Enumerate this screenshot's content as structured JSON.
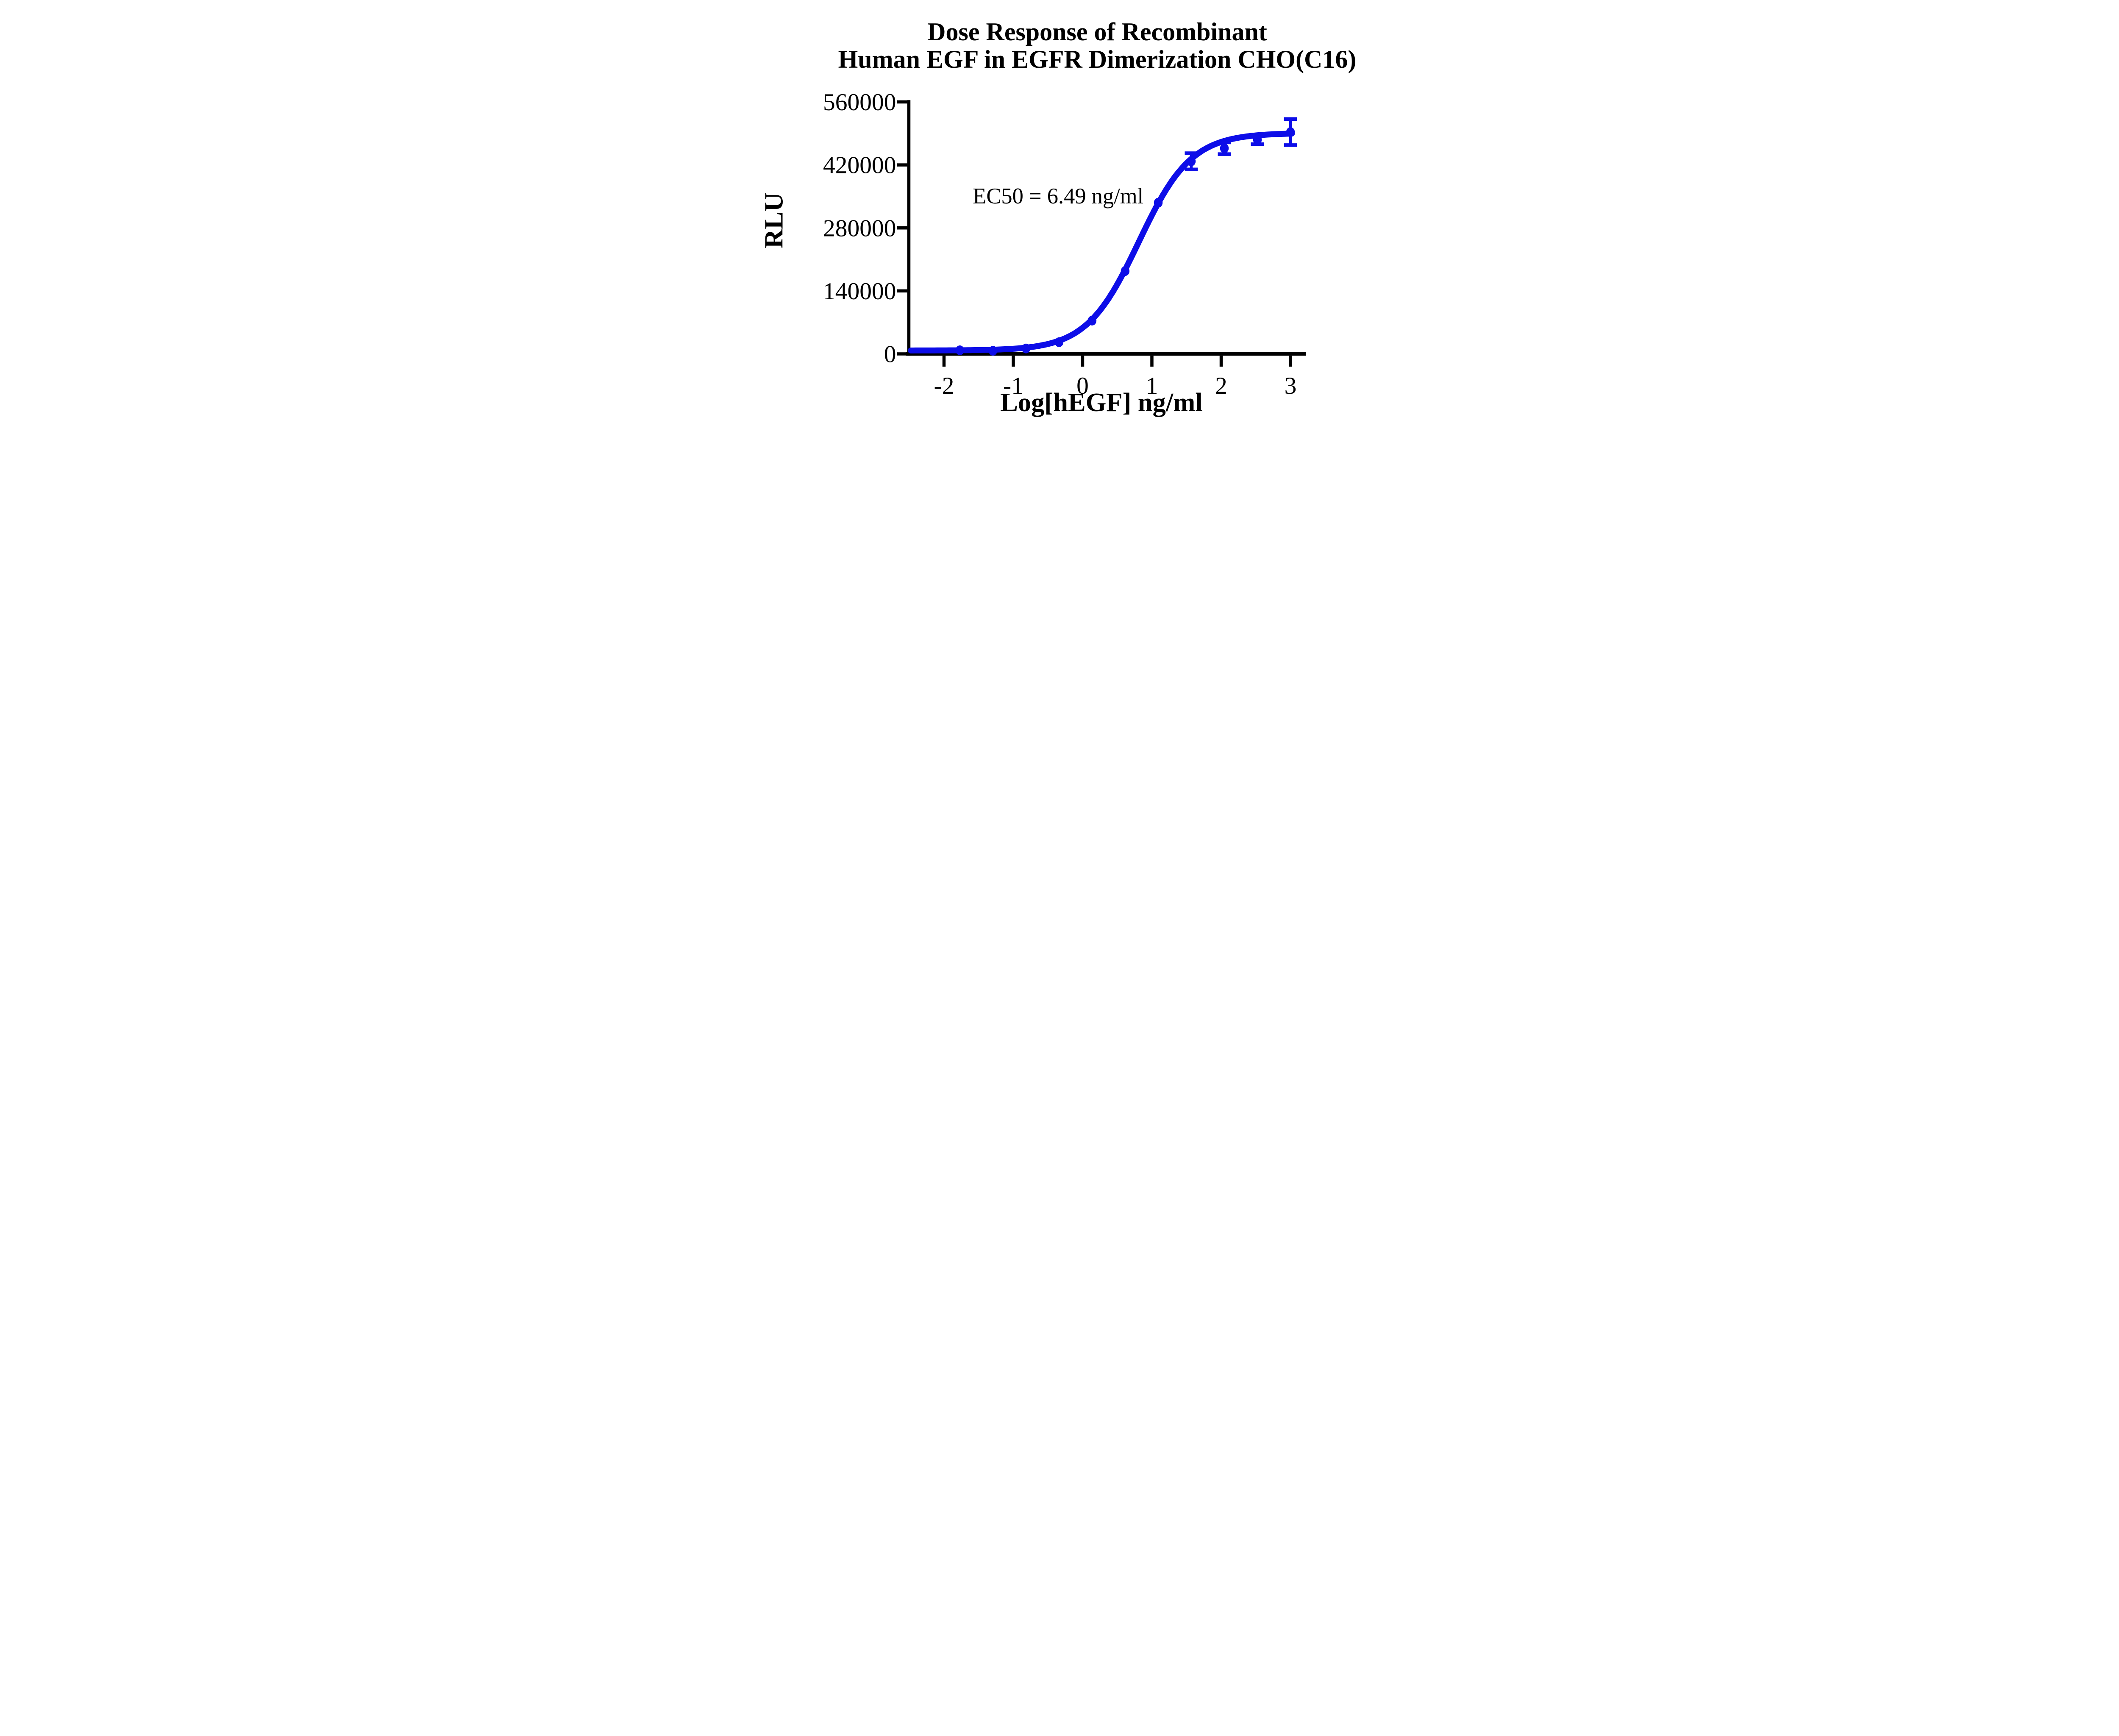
{
  "chart_data": {
    "type": "line",
    "title_line1": "Dose Response of Recombinant",
    "title_line2": "Human EGF in EGFR Dimerization CHO(C16)",
    "annotation": "EC50 = 6.49 ng/ml",
    "xlabel": "Log[hEGF] ng/ml",
    "ylabel": "RLU",
    "x_ticks": [
      -2,
      -1,
      0,
      1,
      2,
      3
    ],
    "y_ticks": [
      0,
      140000,
      280000,
      420000,
      560000
    ],
    "xlim": [
      -2.55,
      3.22
    ],
    "ylim": [
      0,
      560000
    ],
    "grid": false,
    "legend": "none",
    "colors": {
      "series": "#0d0de8",
      "axes": "#000000",
      "background": "#ffffff"
    },
    "series": [
      {
        "name": "Recombinant Human EGF",
        "marker": "circle",
        "points": [
          {
            "log_x": -1.771,
            "rlu": 8000,
            "err": 0
          },
          {
            "log_x": -1.294,
            "rlu": 7000,
            "err": 0
          },
          {
            "log_x": -0.817,
            "rlu": 12000,
            "err": 0
          },
          {
            "log_x": -0.34,
            "rlu": 26000,
            "err": 0
          },
          {
            "log_x": 0.137,
            "rlu": 74000,
            "err": 0
          },
          {
            "log_x": 0.614,
            "rlu": 184000,
            "err": 0
          },
          {
            "log_x": 1.092,
            "rlu": 336000,
            "err": 0
          },
          {
            "log_x": 1.569,
            "rlu": 428000,
            "err": 18000
          },
          {
            "log_x": 2.046,
            "rlu": 457000,
            "err": 13000
          },
          {
            "log_x": 2.523,
            "rlu": 476000,
            "err": 10000
          },
          {
            "log_x": 3.0,
            "rlu": 493000,
            "err": 29000
          }
        ]
      }
    ],
    "curve_fit": {
      "model": "4PL",
      "bottom": 7500,
      "top": 491000,
      "log_ec50": 0.8122,
      "ec50_ng_ml": 6.49,
      "hill": 1.15,
      "draw_range": [
        -2.48,
        3.02
      ]
    }
  }
}
